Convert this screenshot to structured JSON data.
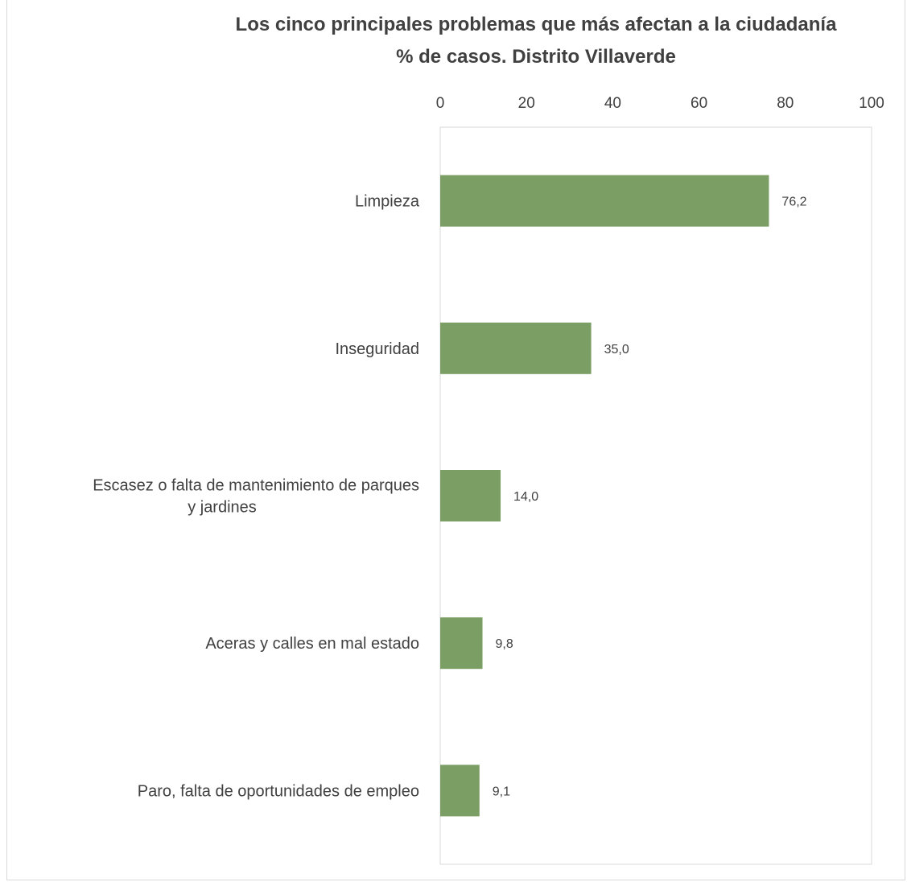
{
  "chart_data": {
    "type": "bar",
    "orientation": "horizontal",
    "title": "Los cinco principales problemas que más afectan a la ciudadanía",
    "subtitle": "% de casos. Distrito Villaverde",
    "categories": [
      "Limpieza",
      "Inseguridad",
      "Escasez o falta de mantenimiento de parques y jardines",
      "Aceras y calles en mal estado",
      "Paro, falta de oportunidades de empleo"
    ],
    "category_lines": [
      [
        "Limpieza"
      ],
      [
        "Inseguridad"
      ],
      [
        "Escasez o falta de mantenimiento de parques",
        "y jardines"
      ],
      [
        "Aceras y calles en mal estado"
      ],
      [
        "Paro, falta de oportunidades de empleo"
      ]
    ],
    "values": [
      76.2,
      35.0,
      14.0,
      9.8,
      9.1
    ],
    "value_labels": [
      "76,2",
      "35,0",
      "14,0",
      "9,8",
      "9,1"
    ],
    "xlim": [
      0,
      100
    ],
    "x_ticks": [
      0,
      20,
      40,
      60,
      80,
      100
    ],
    "x_axis_position": "top",
    "grid": false,
    "legend": "none",
    "bar_color": "#7a9e64"
  }
}
